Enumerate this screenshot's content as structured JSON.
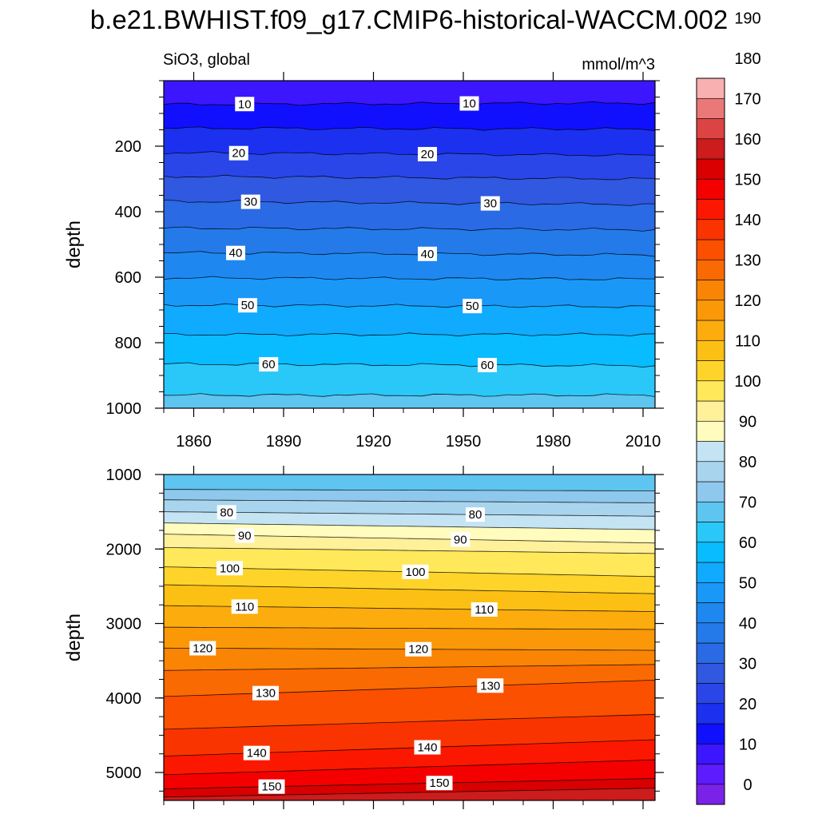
{
  "title": "b.e21.BWHIST.f09_g17.CMIP6-historical-WACCM.002",
  "chart_data": {
    "type": "contour",
    "variable_label": "SiO3, global",
    "units": "mmol/m^3",
    "contour_interval": 5,
    "x_ticks": [
      "1860",
      "1890",
      "1920",
      "1950",
      "1980",
      "2010"
    ],
    "xlim": [
      1850,
      2014
    ],
    "colorbar": {
      "tick_labels": [
        "0",
        "10",
        "20",
        "30",
        "40",
        "50",
        "60",
        "70",
        "80",
        "90",
        "100",
        "110",
        "120",
        "130",
        "140",
        "150",
        "160",
        "170",
        "180",
        "190"
      ],
      "colors": [
        "#7b22e8",
        "#5c1cff",
        "#3c16ff",
        "#1010ff",
        "#1c30f0",
        "#2a46e8",
        "#3058e0",
        "#2a6ae4",
        "#247ae8",
        "#1e88f0",
        "#1a98f8",
        "#10aaff",
        "#08bcff",
        "#2ac8f8",
        "#5ec4f0",
        "#8ec8ec",
        "#a8d4ee",
        "#c4e4f4",
        "#fffcbe",
        "#fff09a",
        "#ffe85a",
        "#ffd42a",
        "#fcc014",
        "#fcac0c",
        "#fa9808",
        "#fa8404",
        "#fa6a02",
        "#fa5000",
        "#fa3400",
        "#fc1800",
        "#f40000",
        "#d80000",
        "#cc1c1c",
        "#dc4444",
        "#ea7878",
        "#f8b0b0"
      ]
    },
    "panels": [
      {
        "name": "upper",
        "ylabel": "depth",
        "y_ticks": [
          "200",
          "400",
          "600",
          "800",
          "1000"
        ],
        "ylim": [
          1000,
          0
        ],
        "contours": [
          {
            "level": 10,
            "depth_start": 72,
            "depth_end": 68,
            "label": "10"
          },
          {
            "level": 15,
            "depth_start": 145,
            "depth_end": 148
          },
          {
            "level": 20,
            "depth_start": 220,
            "depth_end": 228,
            "label": "20"
          },
          {
            "level": 25,
            "depth_start": 292,
            "depth_end": 300
          },
          {
            "level": 30,
            "depth_start": 368,
            "depth_end": 378,
            "label": "30"
          },
          {
            "level": 35,
            "depth_start": 450,
            "depth_end": 455
          },
          {
            "level": 40,
            "depth_start": 525,
            "depth_end": 532,
            "label": "40"
          },
          {
            "level": 45,
            "depth_start": 602,
            "depth_end": 606
          },
          {
            "level": 50,
            "depth_start": 685,
            "depth_end": 690,
            "label": "50"
          },
          {
            "level": 55,
            "depth_start": 775,
            "depth_end": 775
          },
          {
            "level": 60,
            "depth_start": 865,
            "depth_end": 870,
            "label": "60"
          },
          {
            "level": 65,
            "depth_start": 960,
            "depth_end": 960
          }
        ]
      },
      {
        "name": "lower",
        "ylabel": "depth",
        "y_ticks": [
          "1000",
          "2000",
          "3000",
          "4000",
          "5000"
        ],
        "ylim": [
          5375,
          1000
        ],
        "contours": [
          {
            "level": 70,
            "depth_start": 1200,
            "depth_end": 1220
          },
          {
            "level": 75,
            "depth_start": 1340,
            "depth_end": 1380
          },
          {
            "level": 80,
            "depth_start": 1500,
            "depth_end": 1560,
            "label": "80"
          },
          {
            "level": 85,
            "depth_start": 1650,
            "depth_end": 1740
          },
          {
            "level": 90,
            "depth_start": 1800,
            "depth_end": 1920,
            "label": "90"
          },
          {
            "level": 95,
            "depth_start": 1980,
            "depth_end": 2060
          },
          {
            "level": 100,
            "depth_start": 2240,
            "depth_end": 2370,
            "label": "100"
          },
          {
            "level": 105,
            "depth_start": 2480,
            "depth_end": 2600
          },
          {
            "level": 110,
            "depth_start": 2760,
            "depth_end": 2840,
            "label": "110"
          },
          {
            "level": 115,
            "depth_start": 3050,
            "depth_end": 3080
          },
          {
            "level": 120,
            "depth_start": 3330,
            "depth_end": 3360,
            "label": "120"
          },
          {
            "level": 125,
            "depth_start": 3630,
            "depth_end": 3550
          },
          {
            "level": 130,
            "depth_start": 3980,
            "depth_end": 3760,
            "label": "130"
          },
          {
            "level": 135,
            "depth_start": 4420,
            "depth_end": 4220
          },
          {
            "level": 140,
            "depth_start": 4780,
            "depth_end": 4560,
            "label": "140"
          },
          {
            "level": 145,
            "depth_start": 5030,
            "depth_end": 4830
          },
          {
            "level": 150,
            "depth_start": 5220,
            "depth_end": 5080,
            "label": "150"
          },
          {
            "level": 155,
            "depth_start": 5330,
            "depth_end": 5210
          }
        ]
      }
    ],
    "inline_labels": [
      {
        "panel": 0,
        "text": "10",
        "year": 1877,
        "level": 10
      },
      {
        "panel": 0,
        "text": "10",
        "year": 1952,
        "level": 10
      },
      {
        "panel": 0,
        "text": "20",
        "year": 1875,
        "level": 20
      },
      {
        "panel": 0,
        "text": "20",
        "year": 1938,
        "level": 20
      },
      {
        "panel": 0,
        "text": "30",
        "year": 1879,
        "level": 30
      },
      {
        "panel": 0,
        "text": "30",
        "year": 1959,
        "level": 30
      },
      {
        "panel": 0,
        "text": "40",
        "year": 1874,
        "level": 40
      },
      {
        "panel": 0,
        "text": "40",
        "year": 1938,
        "level": 40
      },
      {
        "panel": 0,
        "text": "50",
        "year": 1878,
        "level": 50
      },
      {
        "panel": 0,
        "text": "50",
        "year": 1953,
        "level": 50
      },
      {
        "panel": 0,
        "text": "60",
        "year": 1885,
        "level": 60
      },
      {
        "panel": 0,
        "text": "60",
        "year": 1958,
        "level": 60
      },
      {
        "panel": 1,
        "text": "80",
        "year": 1871,
        "level": 80
      },
      {
        "panel": 1,
        "text": "80",
        "year": 1954,
        "level": 80
      },
      {
        "panel": 1,
        "text": "90",
        "year": 1877,
        "level": 90
      },
      {
        "panel": 1,
        "text": "90",
        "year": 1949,
        "level": 90
      },
      {
        "panel": 1,
        "text": "100",
        "year": 1872,
        "level": 100
      },
      {
        "panel": 1,
        "text": "100",
        "year": 1934,
        "level": 100
      },
      {
        "panel": 1,
        "text": "110",
        "year": 1877,
        "level": 110
      },
      {
        "panel": 1,
        "text": "110",
        "year": 1957,
        "level": 110
      },
      {
        "panel": 1,
        "text": "120",
        "year": 1863,
        "level": 120
      },
      {
        "panel": 1,
        "text": "120",
        "year": 1935,
        "level": 120
      },
      {
        "panel": 1,
        "text": "130",
        "year": 1884,
        "level": 130
      },
      {
        "panel": 1,
        "text": "130",
        "year": 1959,
        "level": 130
      },
      {
        "panel": 1,
        "text": "140",
        "year": 1881,
        "level": 140
      },
      {
        "panel": 1,
        "text": "140",
        "year": 1938,
        "level": 140
      },
      {
        "panel": 1,
        "text": "150",
        "year": 1886,
        "level": 150
      },
      {
        "panel": 1,
        "text": "150",
        "year": 1942,
        "level": 150
      }
    ]
  }
}
